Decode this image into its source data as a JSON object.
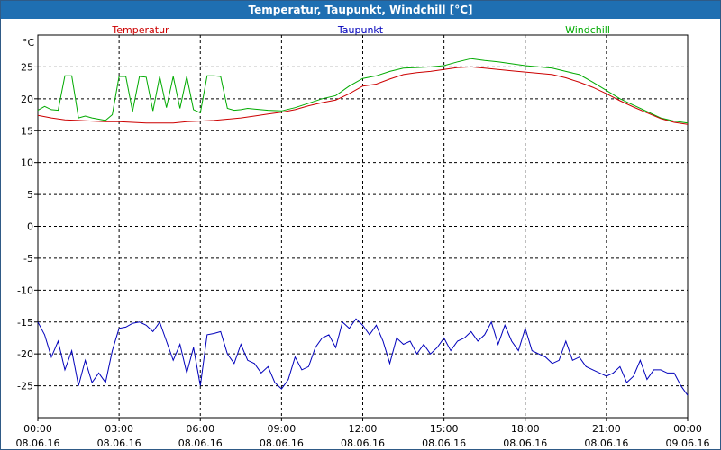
{
  "colors": {
    "titlebar": "#1f6fb2",
    "temperatur": "#cc0000",
    "taupunkt": "#0000bb",
    "windchill": "#00aa00"
  },
  "chart_data": {
    "type": "line",
    "title": "Temperatur, Taupunkt, Windchill [°C]",
    "ylabel": "°C",
    "xlabel": "",
    "ylim": [
      -30,
      30
    ],
    "xlim": [
      0,
      24
    ],
    "grid": true,
    "legend_placement": "top",
    "y_ticks": [
      "25",
      "20",
      "15",
      "10",
      "5",
      "0",
      "-5",
      "-10",
      "-15",
      "-20",
      "-25"
    ],
    "x_ticks": [
      {
        "time": "00:00",
        "date": "08.06.16"
      },
      {
        "time": "03:00",
        "date": "08.06.16"
      },
      {
        "time": "06:00",
        "date": "08.06.16"
      },
      {
        "time": "09:00",
        "date": "08.06.16"
      },
      {
        "time": "12:00",
        "date": "08.06.16"
      },
      {
        "time": "15:00",
        "date": "08.06.16"
      },
      {
        "time": "18:00",
        "date": "08.06.16"
      },
      {
        "time": "21:00",
        "date": "08.06.16"
      },
      {
        "time": "00:00",
        "date": "09.06.16"
      }
    ],
    "series": [
      {
        "name": "Temperatur",
        "color": "#cc0000",
        "x": [
          0,
          0.5,
          1,
          1.5,
          2,
          2.5,
          3,
          3.5,
          4,
          4.5,
          5,
          5.5,
          6,
          6.5,
          7,
          7.5,
          8,
          8.5,
          9,
          9.5,
          10,
          10.5,
          11,
          11.5,
          12,
          12.5,
          13,
          13.5,
          14,
          14.5,
          15,
          15.5,
          16,
          16.5,
          17,
          17.5,
          18,
          18.5,
          19,
          19.5,
          20,
          20.5,
          21,
          21.5,
          22,
          22.5,
          23,
          23.5,
          24
        ],
        "values": [
          17.4,
          17.0,
          16.7,
          16.6,
          16.5,
          16.4,
          16.4,
          16.3,
          16.2,
          16.2,
          16.2,
          16.4,
          16.5,
          16.6,
          16.8,
          17.0,
          17.3,
          17.6,
          17.9,
          18.3,
          18.9,
          19.4,
          19.8,
          20.8,
          22.0,
          22.3,
          23.1,
          23.8,
          24.1,
          24.3,
          24.6,
          24.9,
          25.0,
          24.8,
          24.6,
          24.4,
          24.2,
          24.0,
          23.8,
          23.3,
          22.6,
          21.8,
          20.8,
          19.7,
          18.7,
          17.8,
          16.9,
          16.3,
          16.0
        ]
      },
      {
        "name": "Taupunkt",
        "color": "#0000bb",
        "x": [
          0,
          0.25,
          0.5,
          0.75,
          1,
          1.25,
          1.5,
          1.75,
          2,
          2.25,
          2.5,
          2.75,
          3,
          3.25,
          3.5,
          3.75,
          4,
          4.25,
          4.5,
          4.75,
          5,
          5.25,
          5.5,
          5.75,
          6,
          6.25,
          6.5,
          6.75,
          7,
          7.25,
          7.5,
          7.75,
          8,
          8.25,
          8.5,
          8.75,
          9,
          9.25,
          9.5,
          9.75,
          10,
          10.25,
          10.5,
          10.75,
          11,
          11.25,
          11.5,
          11.75,
          12,
          12.25,
          12.5,
          12.75,
          13,
          13.25,
          13.5,
          13.75,
          14,
          14.25,
          14.5,
          14.75,
          15,
          15.25,
          15.5,
          15.75,
          16,
          16.25,
          16.5,
          16.75,
          17,
          17.25,
          17.5,
          17.75,
          18,
          18.25,
          18.5,
          18.75,
          19,
          19.25,
          19.5,
          19.75,
          20,
          20.25,
          20.5,
          20.75,
          21,
          21.25,
          21.5,
          21.75,
          22,
          22.25,
          22.5,
          22.75,
          23,
          23.25,
          23.5,
          23.75,
          24
        ],
        "values": [
          -15.0,
          -17.0,
          -20.5,
          -18.0,
          -22.5,
          -19.5,
          -25.0,
          -21.0,
          -24.5,
          -23.0,
          -24.5,
          -19.5,
          -16.0,
          -15.8,
          -15.2,
          -15.0,
          -15.5,
          -16.5,
          -15.0,
          -18.0,
          -21.0,
          -18.5,
          -23.0,
          -19.0,
          -25.0,
          -17.0,
          -16.8,
          -16.5,
          -20.0,
          -21.5,
          -18.5,
          -21.0,
          -21.5,
          -23.0,
          -22.0,
          -24.5,
          -25.5,
          -24.0,
          -20.5,
          -22.5,
          -22.0,
          -19.0,
          -17.5,
          -17.0,
          -19.0,
          -15.0,
          -16.0,
          -14.5,
          -15.5,
          -17.0,
          -15.5,
          -18.0,
          -21.5,
          -17.5,
          -18.5,
          -18.0,
          -20.0,
          -18.5,
          -20.0,
          -19.0,
          -17.5,
          -19.5,
          -18.0,
          -17.5,
          -16.5,
          -18.0,
          -17.0,
          -15.0,
          -18.5,
          -15.5,
          -18.0,
          -19.5,
          -16.0,
          -19.5,
          -20.0,
          -20.5,
          -21.5,
          -21.0,
          -18.0,
          -21.0,
          -20.5,
          -22.0,
          -22.5,
          -23.0,
          -23.5,
          -23.0,
          -22.0,
          -24.5,
          -23.5,
          -21.0,
          -24.0,
          -22.5,
          -22.5,
          -23.0,
          -23.0,
          -25.0,
          -26.5
        ]
      },
      {
        "name": "Windchill",
        "color": "#00aa00",
        "x": [
          0,
          0.25,
          0.5,
          0.75,
          1,
          1.25,
          1.5,
          1.75,
          2,
          2.25,
          2.5,
          2.75,
          3,
          3.25,
          3.5,
          3.75,
          4,
          4.25,
          4.5,
          4.75,
          5,
          5.25,
          5.5,
          5.75,
          6,
          6.25,
          6.5,
          6.75,
          7,
          7.25,
          7.5,
          7.75,
          8,
          8.5,
          9,
          9.5,
          10,
          10.5,
          11,
          11.5,
          12,
          12.5,
          13,
          13.5,
          14,
          14.5,
          15,
          15.5,
          16,
          16.5,
          17,
          17.5,
          18,
          18.5,
          19,
          19.5,
          20,
          20.5,
          21,
          21.5,
          22,
          22.5,
          23,
          23.5,
          24
        ],
        "values": [
          18.2,
          18.8,
          18.3,
          18.2,
          23.6,
          23.6,
          17.0,
          17.3,
          17.0,
          16.8,
          16.6,
          17.5,
          23.5,
          23.5,
          18.0,
          23.5,
          23.4,
          18.1,
          23.5,
          18.6,
          23.5,
          18.5,
          23.5,
          18.3,
          17.8,
          23.6,
          23.6,
          23.5,
          18.5,
          18.2,
          18.3,
          18.5,
          18.4,
          18.2,
          18.1,
          18.6,
          19.3,
          20.0,
          20.5,
          22.0,
          23.2,
          23.6,
          24.3,
          24.8,
          24.9,
          25.0,
          25.2,
          25.8,
          26.3,
          26.0,
          25.8,
          25.5,
          25.2,
          25.0,
          24.8,
          24.3,
          23.8,
          22.6,
          21.3,
          20.0,
          19.0,
          18.0,
          17.0,
          16.5,
          16.2
        ]
      }
    ]
  }
}
